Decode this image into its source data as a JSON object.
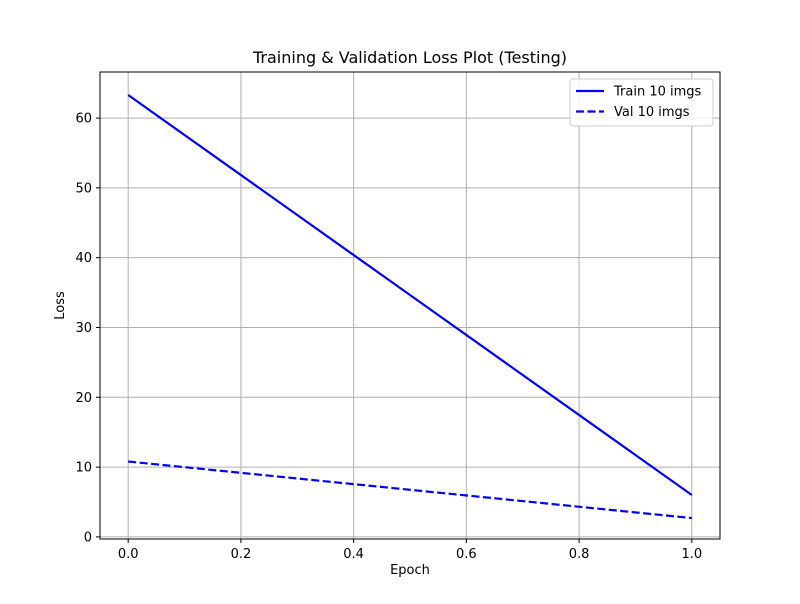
{
  "chart_data": {
    "type": "line",
    "title": "Training & Validation Loss Plot (Testing)",
    "xlabel": "Epoch",
    "ylabel": "Loss",
    "x": [
      0.0,
      1.0
    ],
    "xlim": [
      -0.05,
      1.05
    ],
    "ylim": [
      -0.3,
      66.6
    ],
    "xticks": [
      0.0,
      0.2,
      0.4,
      0.6,
      0.8,
      1.0
    ],
    "xtick_labels": [
      "0.0",
      "0.2",
      "0.4",
      "0.6",
      "0.8",
      "1.0"
    ],
    "yticks": [
      0,
      10,
      20,
      30,
      40,
      50,
      60
    ],
    "ytick_labels": [
      "0",
      "10",
      "20",
      "30",
      "40",
      "50",
      "60"
    ],
    "grid": true,
    "legend_position": "top-right",
    "series": [
      {
        "name": "Train 10 imgs",
        "values": [
          63.3,
          6.0
        ],
        "color": "#0000ff",
        "linestyle": "solid"
      },
      {
        "name": "Val 10 imgs",
        "values": [
          10.8,
          2.7
        ],
        "color": "#0000ff",
        "linestyle": "dashed"
      }
    ]
  }
}
